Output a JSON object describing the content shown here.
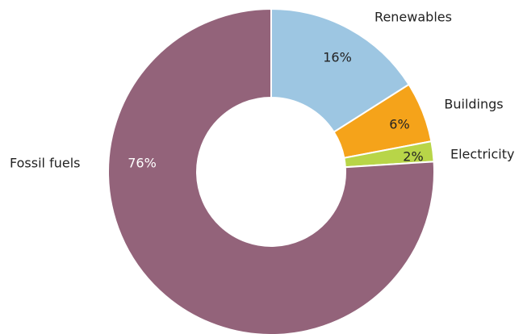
{
  "chart_data": {
    "type": "donut",
    "categories": [
      "Renewables",
      "Buildings",
      "Electricity",
      "Fossil fuels"
    ],
    "values": [
      16,
      6,
      2,
      76
    ],
    "value_labels": [
      "16%",
      "6%",
      "2%",
      "76%"
    ],
    "colors": [
      "#9dc6e2",
      "#f5a31a",
      "#b8d548",
      "#93637a"
    ]
  }
}
